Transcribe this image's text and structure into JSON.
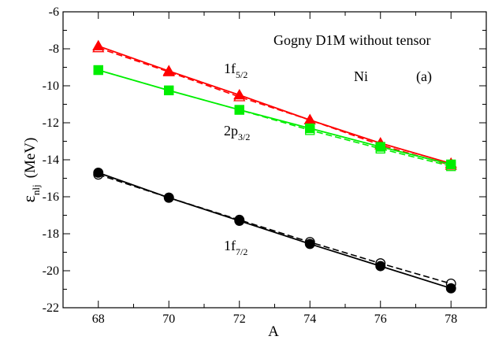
{
  "chart_data": {
    "type": "line",
    "title": "",
    "xlabel": "A",
    "ylabel": {
      "base": "ε",
      "sub": "nlj",
      "unit": "(MeV)"
    },
    "xlim": [
      67,
      79
    ],
    "ylim": [
      -22,
      -6
    ],
    "xticks": [
      68,
      70,
      72,
      74,
      76,
      78
    ],
    "yticks": [
      -22,
      -20,
      -18,
      -16,
      -14,
      -12,
      -10,
      -8,
      -6
    ],
    "grid": false,
    "annotations": {
      "model": "Gogny D1M without tensor",
      "nucleus": "Ni",
      "panel": "(a)"
    },
    "series": [
      {
        "label_main": "1f",
        "label_sub": "5/2",
        "color": "#ff0000",
        "marker": "triangle",
        "x": [
          68,
          70,
          72,
          74,
          76,
          78
        ],
        "solid_values": [
          -7.85,
          -9.2,
          -10.5,
          -11.85,
          -13.1,
          -14.2
        ],
        "dashed_values": [
          -7.95,
          -9.25,
          -10.6,
          -11.85,
          -13.2,
          -14.3
        ]
      },
      {
        "label_main": "2p",
        "label_sub": "3/2",
        "color": "#00ee00",
        "marker": "square",
        "x": [
          68,
          70,
          72,
          74,
          76,
          78
        ],
        "solid_values": [
          -9.15,
          -10.25,
          -11.3,
          -12.3,
          -13.3,
          -14.25
        ],
        "dashed_values": [
          -9.15,
          -10.25,
          -11.3,
          -12.4,
          -13.4,
          -14.35
        ]
      },
      {
        "label_main": "1f",
        "label_sub": "7/2",
        "color": "#000000",
        "marker": "circle",
        "x": [
          68,
          70,
          72,
          74,
          76,
          78
        ],
        "solid_values": [
          -14.7,
          -16.05,
          -17.3,
          -18.55,
          -19.75,
          -20.95
        ],
        "dashed_values": [
          -14.8,
          -16.05,
          -17.25,
          -18.45,
          -19.6,
          -20.7
        ]
      }
    ]
  }
}
